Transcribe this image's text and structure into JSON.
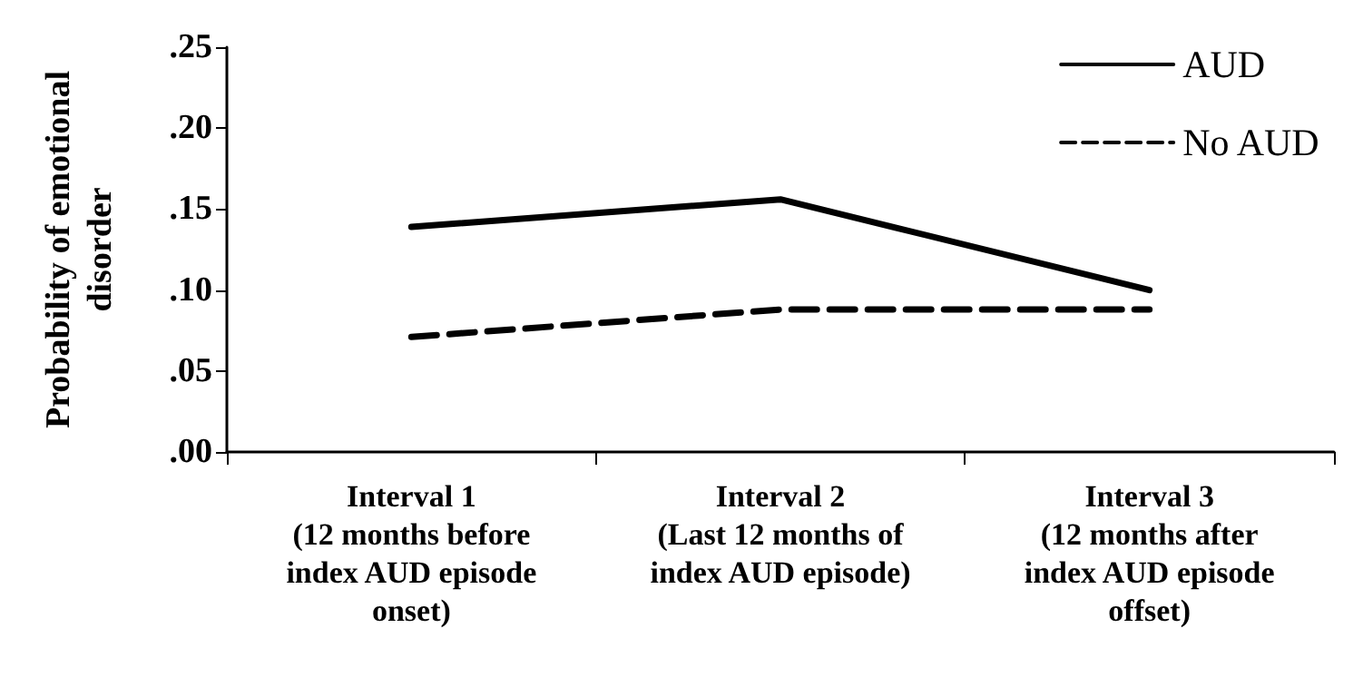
{
  "chart_data": {
    "type": "line",
    "ylabel": "Probability of emotional\ndisorder",
    "categories": [
      "Interval 1\n(12 months before\nindex AUD episode\nonset)",
      "Interval 2\n(Last 12 months of\nindex AUD episode)",
      "Interval 3\n(12 months after\nindex AUD episode\noffset)"
    ],
    "series": [
      {
        "name": "AUD",
        "color": "#000000",
        "line_style": "solid",
        "values": [
          0.139,
          0.156,
          0.1
        ]
      },
      {
        "name": "No AUD",
        "color": "#000000",
        "line_style": "dashed",
        "values": [
          0.071,
          0.088,
          0.088
        ]
      }
    ],
    "ylim": [
      0,
      0.25
    ],
    "yticks": [
      {
        "value": 0,
        "label": ".00"
      },
      {
        "value": 0.05,
        "label": ".05"
      },
      {
        "value": 0.1,
        "label": ".10"
      },
      {
        "value": 0.15,
        "label": ".15"
      },
      {
        "value": 0.2,
        "label": ".20"
      },
      {
        "value": 0.25,
        "label": ".25"
      }
    ],
    "grid": false,
    "legend": "top right",
    "marker": "none"
  }
}
